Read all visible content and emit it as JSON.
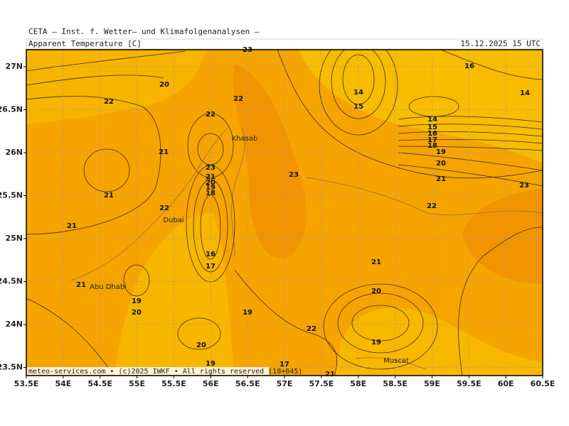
{
  "header": {
    "institute": "CETA – Inst. f. Wetter– und Klimafolgenanalysen –",
    "title": "Apparent Temperature [C]",
    "datetime": "15.12.2025 15 UTC"
  },
  "axes": {
    "x": [
      "53.5E",
      "54E",
      "54.5E",
      "55E",
      "55.5E",
      "56E",
      "56.5E",
      "57E",
      "57.5E",
      "58E",
      "58.5E",
      "59E",
      "59.5E",
      "60E",
      "60.5E"
    ],
    "y": [
      "27N",
      "26.5N",
      "26N",
      "25.5N",
      "25N",
      "24.5N",
      "24N",
      "23.5N"
    ]
  },
  "contour_labels": [
    "23",
    "20",
    "22",
    "22",
    "14",
    "15",
    "16",
    "14",
    "22",
    "14",
    "15",
    "16",
    "17",
    "18",
    "19",
    "20",
    "21",
    "23",
    "21",
    "20",
    "19",
    "18",
    "23",
    "21",
    "23",
    "21",
    "22",
    "22",
    "21",
    "16",
    "17",
    "21",
    "21",
    "20",
    "19",
    "20",
    "19",
    "22",
    "20",
    "19",
    "19",
    "17",
    "21"
  ],
  "cities": [
    "Khasab",
    "Dubai",
    "Abu Dhabi",
    "Muscat"
  ],
  "footer": "meteo-services.com • (c)2025 IWKF • All rights reserved (18+045)"
}
